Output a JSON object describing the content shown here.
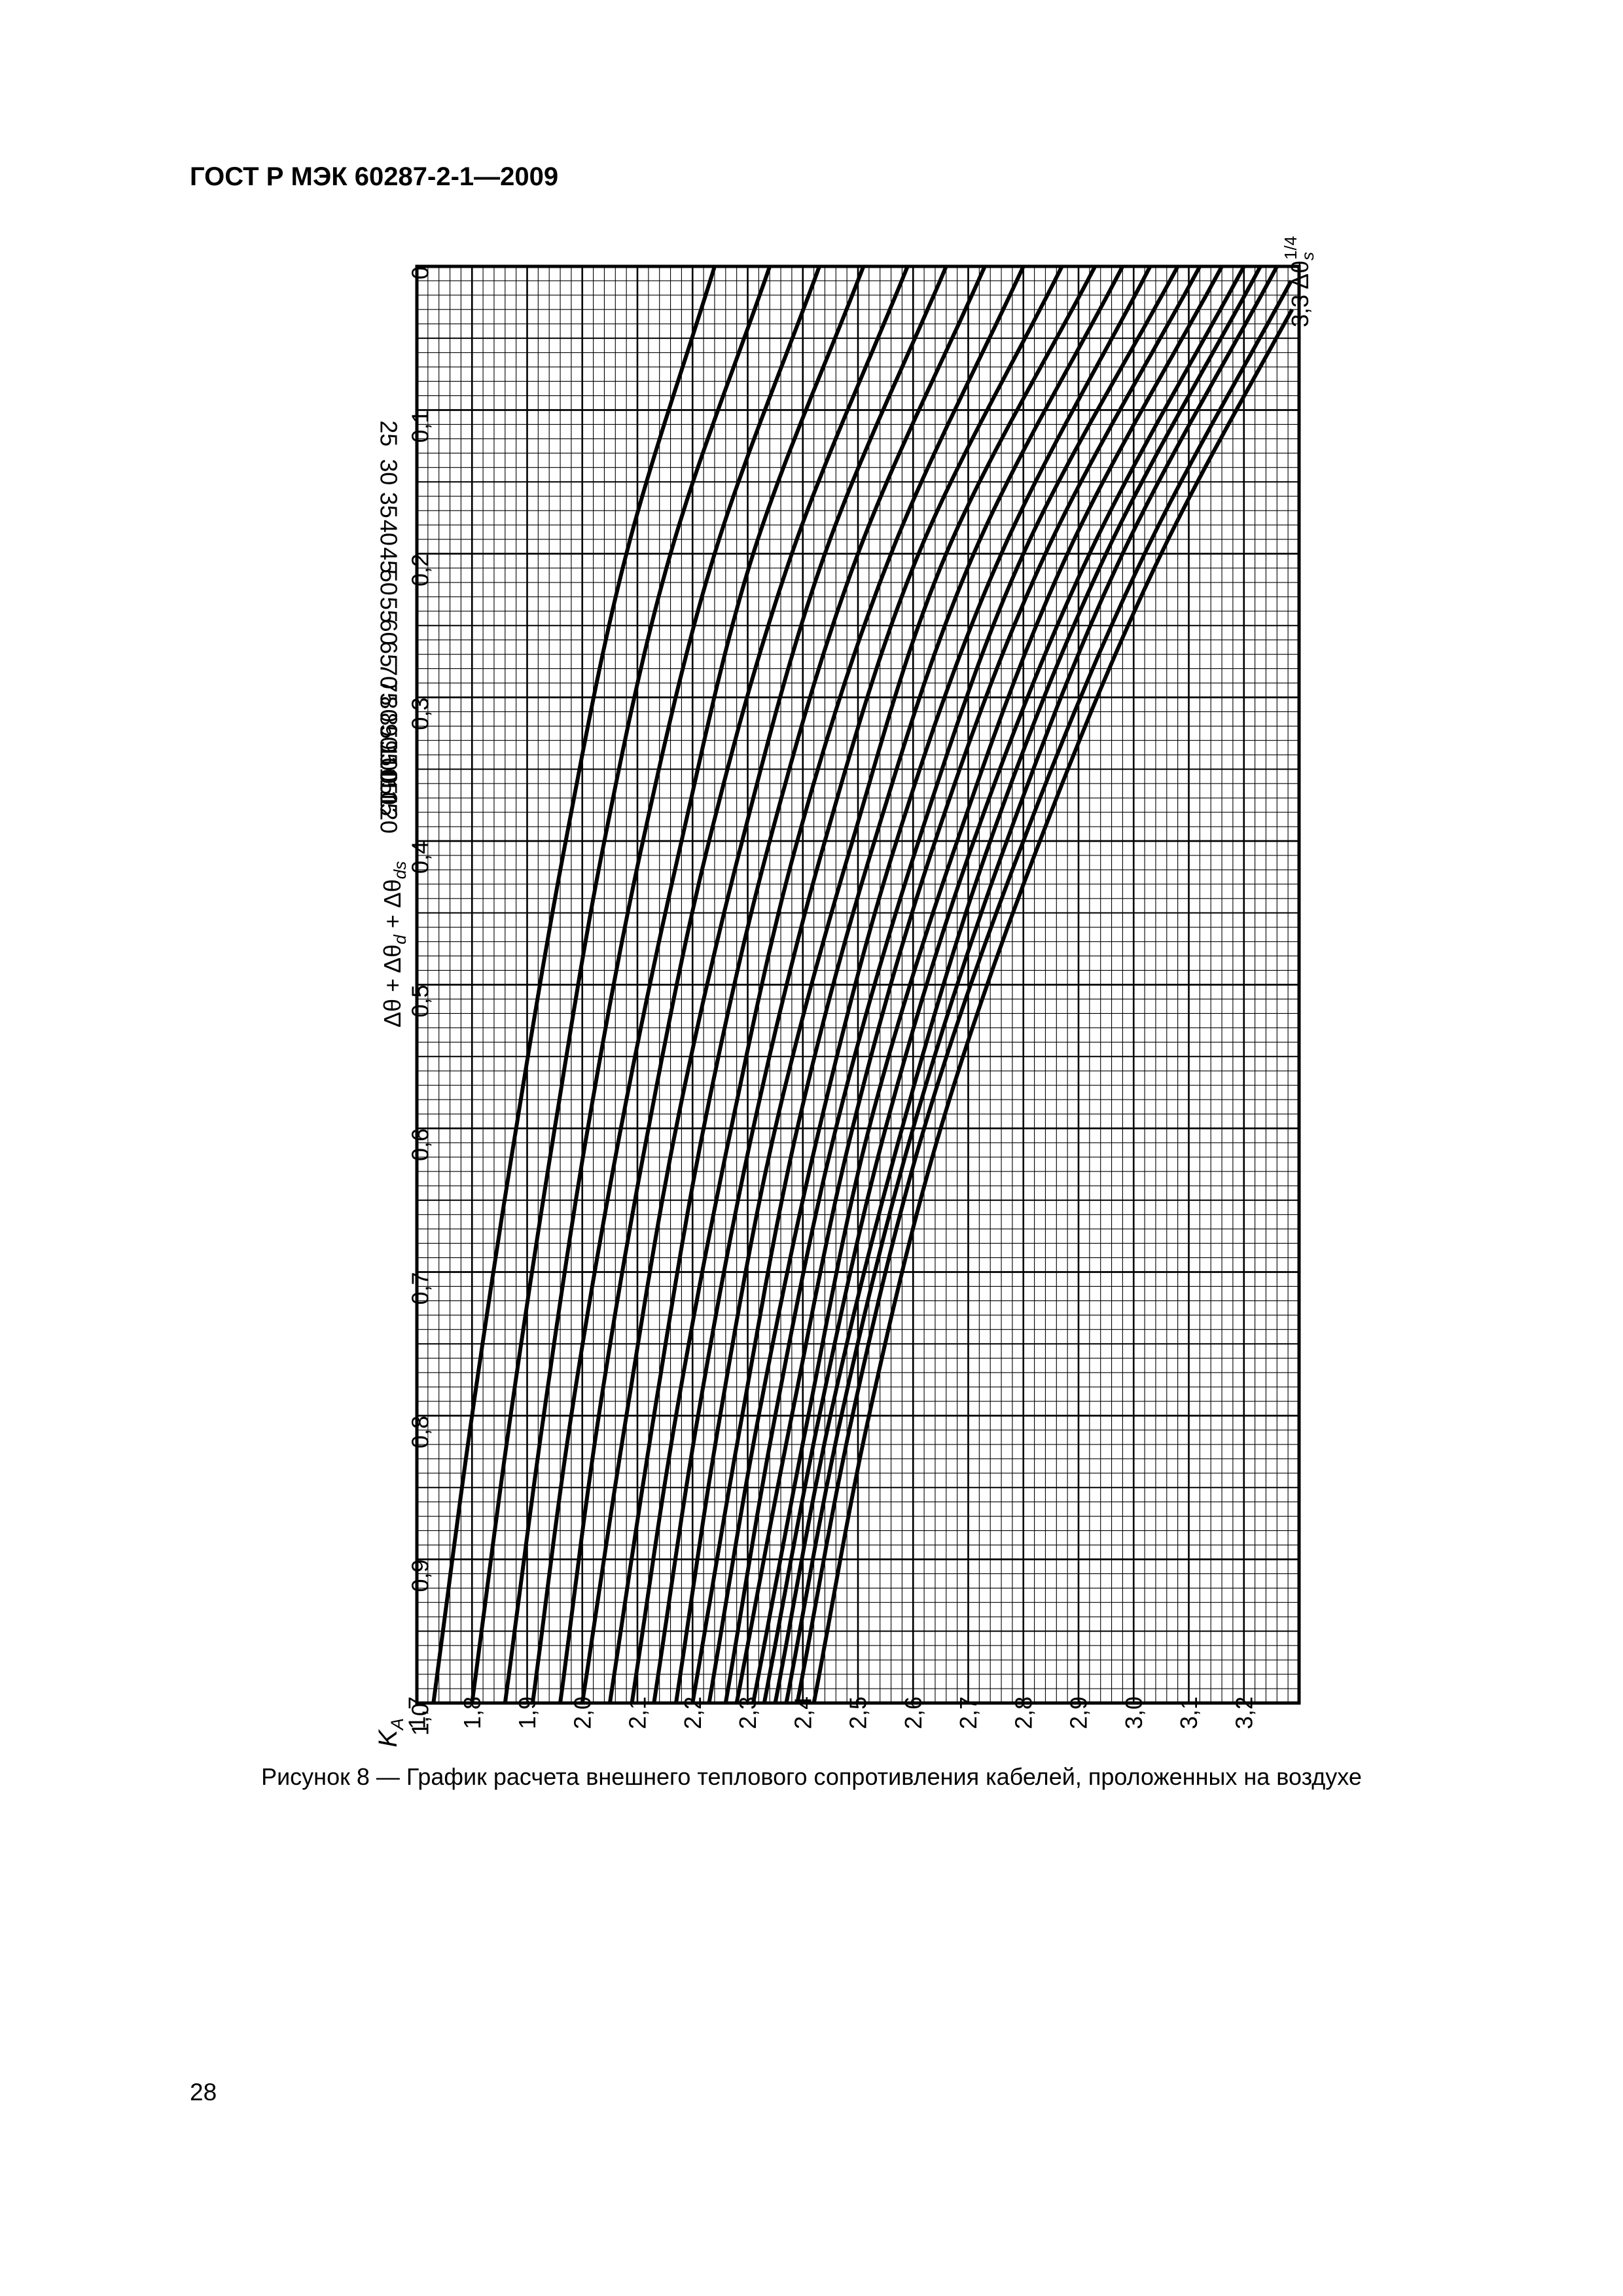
{
  "document": {
    "header": "ГОСТ Р МЭК 60287-2-1—2009",
    "page_number": "28",
    "caption": "Рисунок  8 — График расчета внешнего теплового сопротивления кабелей, проложенных на воздухе"
  },
  "chart_data": {
    "type": "line",
    "orientation": "rotated 90° counter-clockwise on the page",
    "x_axis": {
      "label_symbol": "K",
      "label_subscript": "A",
      "range": [
        1.0,
        0.0
      ],
      "ticks": [
        "1,0",
        "0,9",
        "0,8",
        "0,7",
        "0,6",
        "0,5",
        "0,4",
        "0,3",
        "0,2",
        "0,1",
        "0"
      ]
    },
    "y_axis": {
      "label_prefix": "3,3 Δθ",
      "label_subscript": "s",
      "label_superscript": "1/4",
      "range": [
        1.7,
        3.3
      ],
      "ticks": [
        "1,7",
        "1,8",
        "1,9",
        "2,0",
        "2,1",
        "2,2",
        "2,3",
        "2,4",
        "2,5",
        "2,6",
        "2,7",
        "2,8",
        "2,9",
        "3,0",
        "3,1",
        "3,2"
      ]
    },
    "curve_family_label": {
      "base": "Δθ + Δθ",
      "sub_d": "d",
      "plus": " + Δθ",
      "sub_ds": "ds"
    },
    "grid": true,
    "series": [
      {
        "name": "25",
        "points": [
          [
            1.0,
            1.73
          ],
          [
            0.8,
            1.8
          ],
          [
            0.6,
            1.88
          ],
          [
            0.4,
            1.97
          ],
          [
            0.2,
            2.08
          ],
          [
            0.0,
            2.24
          ]
        ]
      },
      {
        "name": "30",
        "points": [
          [
            1.0,
            1.8
          ],
          [
            0.8,
            1.87
          ],
          [
            0.6,
            1.95
          ],
          [
            0.4,
            2.04
          ],
          [
            0.2,
            2.16
          ],
          [
            0.0,
            2.34
          ]
        ]
      },
      {
        "name": "35",
        "points": [
          [
            1.0,
            1.86
          ],
          [
            0.8,
            1.93
          ],
          [
            0.6,
            2.01
          ],
          [
            0.4,
            2.11
          ],
          [
            0.2,
            2.24
          ],
          [
            0.0,
            2.43
          ]
        ]
      },
      {
        "name": "40",
        "points": [
          [
            1.0,
            1.91
          ],
          [
            0.8,
            1.98
          ],
          [
            0.6,
            2.07
          ],
          [
            0.4,
            2.18
          ],
          [
            0.2,
            2.31
          ],
          [
            0.0,
            2.51
          ]
        ]
      },
      {
        "name": "45",
        "points": [
          [
            1.0,
            1.96
          ],
          [
            0.8,
            2.03
          ],
          [
            0.6,
            2.12
          ],
          [
            0.4,
            2.23
          ],
          [
            0.2,
            2.38
          ],
          [
            0.0,
            2.59
          ]
        ]
      },
      {
        "name": "50",
        "points": [
          [
            1.0,
            2.0
          ],
          [
            0.8,
            2.08
          ],
          [
            0.6,
            2.17
          ],
          [
            0.4,
            2.29
          ],
          [
            0.2,
            2.44
          ],
          [
            0.0,
            2.66
          ]
        ]
      },
      {
        "name": "55",
        "points": [
          [
            1.0,
            2.05
          ],
          [
            0.8,
            2.13
          ],
          [
            0.6,
            2.22
          ],
          [
            0.4,
            2.34
          ],
          [
            0.2,
            2.5
          ],
          [
            0.0,
            2.73
          ]
        ]
      },
      {
        "name": "60",
        "points": [
          [
            1.0,
            2.09
          ],
          [
            0.8,
            2.17
          ],
          [
            0.6,
            2.27
          ],
          [
            0.4,
            2.39
          ],
          [
            0.2,
            2.56
          ],
          [
            0.0,
            2.8
          ]
        ]
      },
      {
        "name": "65",
        "points": [
          [
            1.0,
            2.13
          ],
          [
            0.8,
            2.21
          ],
          [
            0.6,
            2.31
          ],
          [
            0.4,
            2.44
          ],
          [
            0.2,
            2.61
          ],
          [
            0.0,
            2.87
          ]
        ]
      },
      {
        "name": "70",
        "points": [
          [
            1.0,
            2.17
          ],
          [
            0.8,
            2.25
          ],
          [
            0.6,
            2.35
          ],
          [
            0.4,
            2.49
          ],
          [
            0.2,
            2.66
          ],
          [
            0.0,
            2.93
          ]
        ]
      },
      {
        "name": "75",
        "points": [
          [
            1.0,
            2.2
          ],
          [
            0.8,
            2.29
          ],
          [
            0.6,
            2.39
          ],
          [
            0.4,
            2.53
          ],
          [
            0.2,
            2.71
          ],
          [
            0.0,
            2.98
          ]
        ]
      },
      {
        "name": "80",
        "points": [
          [
            1.0,
            2.23
          ],
          [
            0.8,
            2.32
          ],
          [
            0.6,
            2.43
          ],
          [
            0.4,
            2.57
          ],
          [
            0.2,
            2.76
          ],
          [
            0.0,
            3.03
          ]
        ]
      },
      {
        "name": "85",
        "points": [
          [
            1.0,
            2.26
          ],
          [
            0.8,
            2.35
          ],
          [
            0.6,
            2.46
          ],
          [
            0.4,
            2.61
          ],
          [
            0.2,
            2.8
          ],
          [
            0.0,
            3.08
          ]
        ]
      },
      {
        "name": "90",
        "points": [
          [
            1.0,
            2.28
          ],
          [
            0.8,
            2.38
          ],
          [
            0.6,
            2.49
          ],
          [
            0.4,
            2.64
          ],
          [
            0.2,
            2.84
          ],
          [
            0.0,
            3.12
          ]
        ]
      },
      {
        "name": "95",
        "points": [
          [
            1.0,
            2.31
          ],
          [
            0.8,
            2.41
          ],
          [
            0.6,
            2.52
          ],
          [
            0.4,
            2.68
          ],
          [
            0.2,
            2.88
          ],
          [
            0.0,
            3.16
          ]
        ]
      },
      {
        "name": "100",
        "points": [
          [
            1.0,
            2.33
          ],
          [
            0.8,
            2.43
          ],
          [
            0.6,
            2.55
          ],
          [
            0.4,
            2.71
          ],
          [
            0.2,
            2.92
          ],
          [
            0.0,
            3.2
          ]
        ]
      },
      {
        "name": "105",
        "points": [
          [
            1.0,
            2.35
          ],
          [
            0.8,
            2.45
          ],
          [
            0.6,
            2.58
          ],
          [
            0.4,
            2.74
          ],
          [
            0.2,
            2.95
          ],
          [
            0.0,
            3.23
          ]
        ]
      },
      {
        "name": "110",
        "points": [
          [
            1.0,
            2.37
          ],
          [
            0.8,
            2.47
          ],
          [
            0.6,
            2.6
          ],
          [
            0.4,
            2.77
          ],
          [
            0.2,
            2.98
          ],
          [
            0.0,
            3.26
          ]
        ]
      },
      {
        "name": "115",
        "points": [
          [
            1.0,
            2.39
          ],
          [
            0.8,
            2.49
          ],
          [
            0.6,
            2.62
          ],
          [
            0.4,
            2.8
          ],
          [
            0.2,
            3.02
          ],
          [
            0.0,
            3.3
          ]
        ]
      },
      {
        "name": "120",
        "points": [
          [
            1.0,
            2.42
          ],
          [
            0.8,
            2.52
          ],
          [
            0.6,
            2.65
          ],
          [
            0.4,
            2.83
          ],
          [
            0.2,
            3.05
          ],
          [
            0.0,
            3.33
          ]
        ]
      }
    ]
  }
}
